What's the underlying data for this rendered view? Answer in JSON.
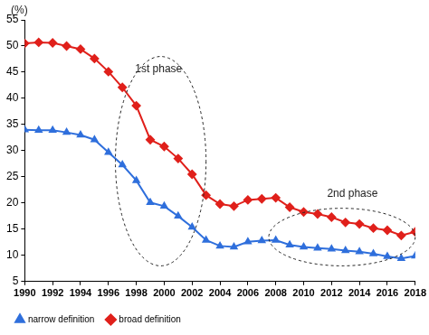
{
  "chart_data": {
    "type": "line",
    "y_label": "(%)",
    "x": [
      1990,
      1991,
      1992,
      1993,
      1994,
      1995,
      1996,
      1997,
      1998,
      1999,
      2000,
      2001,
      2002,
      2003,
      2004,
      2005,
      2006,
      2007,
      2008,
      2009,
      2010,
      2011,
      2012,
      2013,
      2014,
      2015,
      2016,
      2017,
      2018
    ],
    "series": [
      {
        "name": "narrow definition",
        "color": "#2f6fdc",
        "marker": "triangle",
        "line_style": "solid",
        "values": [
          34.0,
          33.9,
          33.9,
          33.5,
          33.0,
          32.1,
          29.7,
          27.3,
          24.3,
          20.1,
          19.4,
          17.5,
          15.4,
          12.9,
          11.8,
          11.6,
          12.6,
          12.8,
          12.9,
          12.0,
          11.6,
          11.4,
          11.2,
          10.9,
          10.7,
          10.3,
          9.8,
          9.4,
          9.9
        ]
      },
      {
        "name": "broad definition",
        "color": "#e0201b",
        "marker": "diamond",
        "line_style": "solid",
        "values": [
          50.5,
          50.7,
          50.6,
          50.0,
          49.4,
          47.6,
          45.1,
          42.1,
          38.6,
          32.1,
          30.8,
          28.5,
          25.5,
          21.5,
          19.8,
          19.4,
          20.6,
          20.8,
          21.0,
          19.2,
          18.3,
          17.9,
          17.3,
          16.3,
          16.0,
          15.2,
          14.8,
          13.8,
          14.5
        ]
      }
    ],
    "xlim": [
      1990,
      2018
    ],
    "xticks": [
      1990,
      1992,
      1994,
      1996,
      1998,
      2000,
      2002,
      2004,
      2006,
      2008,
      2010,
      2012,
      2014,
      2016,
      2018
    ],
    "ylim": [
      5,
      55
    ],
    "yticks": [
      5,
      10,
      15,
      20,
      25,
      30,
      35,
      40,
      45,
      50,
      55
    ],
    "grid": false,
    "legend": "bottom",
    "annotations": [
      {
        "text": "1st phase",
        "x": 1999.6,
        "y": 45.5,
        "ellipse": {
          "x": [
            1996.5,
            2003.0
          ],
          "y": [
            8,
            48
          ]
        }
      },
      {
        "text": "2nd phase",
        "x": 2013.5,
        "y": 21.8,
        "ellipse": {
          "x": [
            2007.5,
            2018.0
          ],
          "y": [
            8,
            19
          ]
        }
      }
    ]
  }
}
